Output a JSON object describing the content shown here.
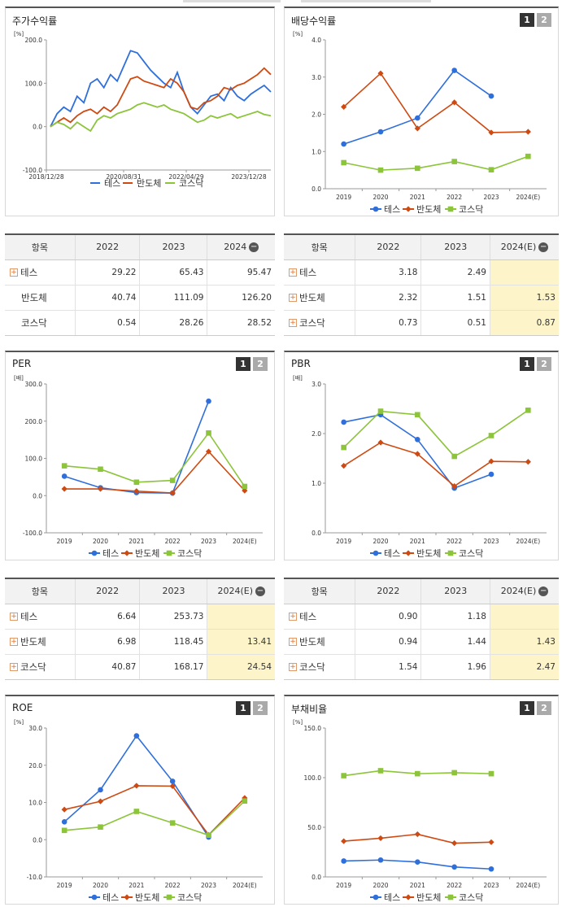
{
  "legend_names": [
    "테스",
    "반도체",
    "코스닥"
  ],
  "colors": {
    "tes": "#2f6fdb",
    "semi": "#cf4a12",
    "kosdaq": "#8cc43a"
  },
  "panels": {
    "price": {
      "title": "주가수익률",
      "unit": "[%]",
      "yticks": [
        "200.0",
        "100.0",
        "0.0",
        "-100.0"
      ],
      "xticks": [
        "2018/12/28",
        "2020/08/31",
        "2022/04/29",
        "2023/12/28"
      ]
    },
    "dividend": {
      "title": "배당수익률",
      "unit": "[%]",
      "btn1": "1",
      "btn2": "2"
    },
    "per": {
      "title": "PER",
      "unit": "[배]",
      "btn1": "1",
      "btn2": "2"
    },
    "pbr": {
      "title": "PBR",
      "unit": "[배]",
      "btn1": "1",
      "btn2": "2"
    },
    "roe": {
      "title": "ROE",
      "unit": "[%]",
      "btn1": "1",
      "btn2": "2"
    },
    "debt": {
      "title": "부채비율",
      "unit": "[%]",
      "btn1": "1",
      "btn2": "2"
    }
  },
  "tables": {
    "price": {
      "headers": [
        "항목",
        "2022",
        "2023",
        "2024"
      ],
      "rows": [
        {
          "name": "테스",
          "values": [
            "29.22",
            "65.43",
            "95.47"
          ]
        },
        {
          "name": "반도체",
          "values": [
            "40.74",
            "111.09",
            "126.20"
          ]
        },
        {
          "name": "코스닥",
          "values": [
            "0.54",
            "28.26",
            "28.52"
          ]
        }
      ]
    },
    "dividend": {
      "headers": [
        "항목",
        "2022",
        "2023",
        "2024(E)"
      ],
      "rows": [
        {
          "name": "테스",
          "values": [
            "3.18",
            "2.49",
            ""
          ]
        },
        {
          "name": "반도체",
          "values": [
            "2.32",
            "1.51",
            "1.53"
          ]
        },
        {
          "name": "코스닥",
          "values": [
            "0.73",
            "0.51",
            "0.87"
          ]
        }
      ]
    },
    "per": {
      "headers": [
        "항목",
        "2022",
        "2023",
        "2024(E)"
      ],
      "rows": [
        {
          "name": "테스",
          "values": [
            "6.64",
            "253.73",
            ""
          ]
        },
        {
          "name": "반도체",
          "values": [
            "6.98",
            "118.45",
            "13.41"
          ]
        },
        {
          "name": "코스닥",
          "values": [
            "40.87",
            "168.17",
            "24.54"
          ]
        }
      ]
    },
    "pbr": {
      "headers": [
        "항목",
        "2022",
        "2023",
        "2024(E)"
      ],
      "rows": [
        {
          "name": "테스",
          "values": [
            "0.90",
            "1.18",
            ""
          ]
        },
        {
          "name": "반도체",
          "values": [
            "0.94",
            "1.44",
            "1.43"
          ]
        },
        {
          "name": "코스닥",
          "values": [
            "1.54",
            "1.96",
            "2.47"
          ]
        }
      ]
    }
  },
  "chart_data": [
    {
      "id": "price",
      "type": "line",
      "title": "주가수익률",
      "ylabel": "[%]",
      "x_start": "2018/12/28",
      "x_end": "2023/12/28",
      "ylim": [
        -100,
        200
      ],
      "series": [
        {
          "name": "테스",
          "values": [
            0,
            30,
            45,
            35,
            70,
            55,
            100,
            110,
            90,
            120,
            105,
            140,
            175,
            170,
            150,
            130,
            115,
            100,
            90,
            125,
            80,
            45,
            30,
            50,
            70,
            75,
            60,
            90,
            70,
            60,
            75,
            85,
            95,
            80
          ]
        },
        {
          "name": "반도체",
          "values": [
            0,
            10,
            20,
            10,
            25,
            35,
            40,
            30,
            45,
            35,
            50,
            80,
            110,
            115,
            105,
            100,
            95,
            90,
            110,
            100,
            80,
            45,
            40,
            55,
            60,
            70,
            90,
            85,
            95,
            100,
            110,
            120,
            135,
            120
          ]
        },
        {
          "name": "코스닥",
          "values": [
            0,
            10,
            5,
            -5,
            10,
            0,
            -10,
            15,
            25,
            20,
            30,
            35,
            40,
            50,
            55,
            50,
            45,
            50,
            40,
            35,
            30,
            20,
            10,
            15,
            25,
            20,
            25,
            30,
            20,
            25,
            30,
            35,
            28,
            25
          ]
        }
      ]
    },
    {
      "id": "dividend",
      "type": "line",
      "ylim": [
        0,
        4
      ],
      "yticks": [
        "4.0",
        "3.0",
        "2.0",
        "1.0",
        "0.0"
      ],
      "categories": [
        "2019",
        "2020",
        "2021",
        "2022",
        "2023",
        "2024(E)"
      ],
      "series": [
        {
          "name": "테스",
          "values": [
            1.2,
            1.53,
            1.9,
            3.18,
            2.49,
            null
          ]
        },
        {
          "name": "반도체",
          "values": [
            2.2,
            3.1,
            1.62,
            2.32,
            1.51,
            1.53
          ]
        },
        {
          "name": "코스닥",
          "values": [
            0.7,
            0.5,
            0.55,
            0.73,
            0.51,
            0.87
          ]
        }
      ]
    },
    {
      "id": "per",
      "type": "line",
      "ylim": [
        -100,
        300
      ],
      "yticks": [
        "300.0",
        "200.0",
        "100.0",
        "0.0",
        "-100.0"
      ],
      "categories": [
        "2019",
        "2020",
        "2021",
        "2022",
        "2023",
        "2024(E)"
      ],
      "series": [
        {
          "name": "테스",
          "values": [
            52,
            21,
            8,
            6.64,
            253.73,
            null
          ]
        },
        {
          "name": "반도체",
          "values": [
            18,
            18,
            12,
            6.98,
            118.45,
            13.41
          ]
        },
        {
          "name": "코스닥",
          "values": [
            80,
            71,
            36,
            40.87,
            168.17,
            24.54
          ]
        }
      ]
    },
    {
      "id": "pbr",
      "type": "line",
      "ylim": [
        0,
        3
      ],
      "yticks": [
        "3.0",
        "2.0",
        "1.0",
        "0.0"
      ],
      "categories": [
        "2019",
        "2020",
        "2021",
        "2022",
        "2023",
        "2024(E)"
      ],
      "series": [
        {
          "name": "테스",
          "values": [
            2.23,
            2.38,
            1.88,
            0.9,
            1.18,
            null
          ]
        },
        {
          "name": "반도체",
          "values": [
            1.35,
            1.82,
            1.59,
            0.94,
            1.44,
            1.43
          ]
        },
        {
          "name": "코스닥",
          "values": [
            1.72,
            2.45,
            2.38,
            1.54,
            1.96,
            2.47
          ]
        }
      ]
    },
    {
      "id": "roe",
      "type": "line",
      "ylim": [
        -10,
        30
      ],
      "yticks": [
        "30.0",
        "20.0",
        "10.0",
        "0.0",
        "-10.0"
      ],
      "categories": [
        "2019",
        "2020",
        "2021",
        "2022",
        "2023",
        "2024(E)"
      ],
      "series": [
        {
          "name": "테스",
          "values": [
            4.8,
            13.4,
            27.9,
            15.7,
            0.7,
            null
          ]
        },
        {
          "name": "반도체",
          "values": [
            8.1,
            10.3,
            14.5,
            14.4,
            1.3,
            11.2
          ]
        },
        {
          "name": "코스닥",
          "values": [
            2.5,
            3.4,
            7.6,
            4.5,
            1.2,
            10.4
          ]
        }
      ]
    },
    {
      "id": "debt",
      "type": "line",
      "ylim": [
        0,
        150
      ],
      "yticks": [
        "150.0",
        "100.0",
        "50.0",
        "0.0"
      ],
      "categories": [
        "2019",
        "2020",
        "2021",
        "2022",
        "2023",
        "2024(E)"
      ],
      "series": [
        {
          "name": "테스",
          "values": [
            16,
            17,
            15,
            10,
            8,
            null
          ]
        },
        {
          "name": "반도체",
          "values": [
            36,
            39,
            43,
            34,
            35,
            null
          ]
        },
        {
          "name": "코스닥",
          "values": [
            102,
            107,
            104,
            105,
            104,
            null
          ]
        }
      ]
    }
  ]
}
